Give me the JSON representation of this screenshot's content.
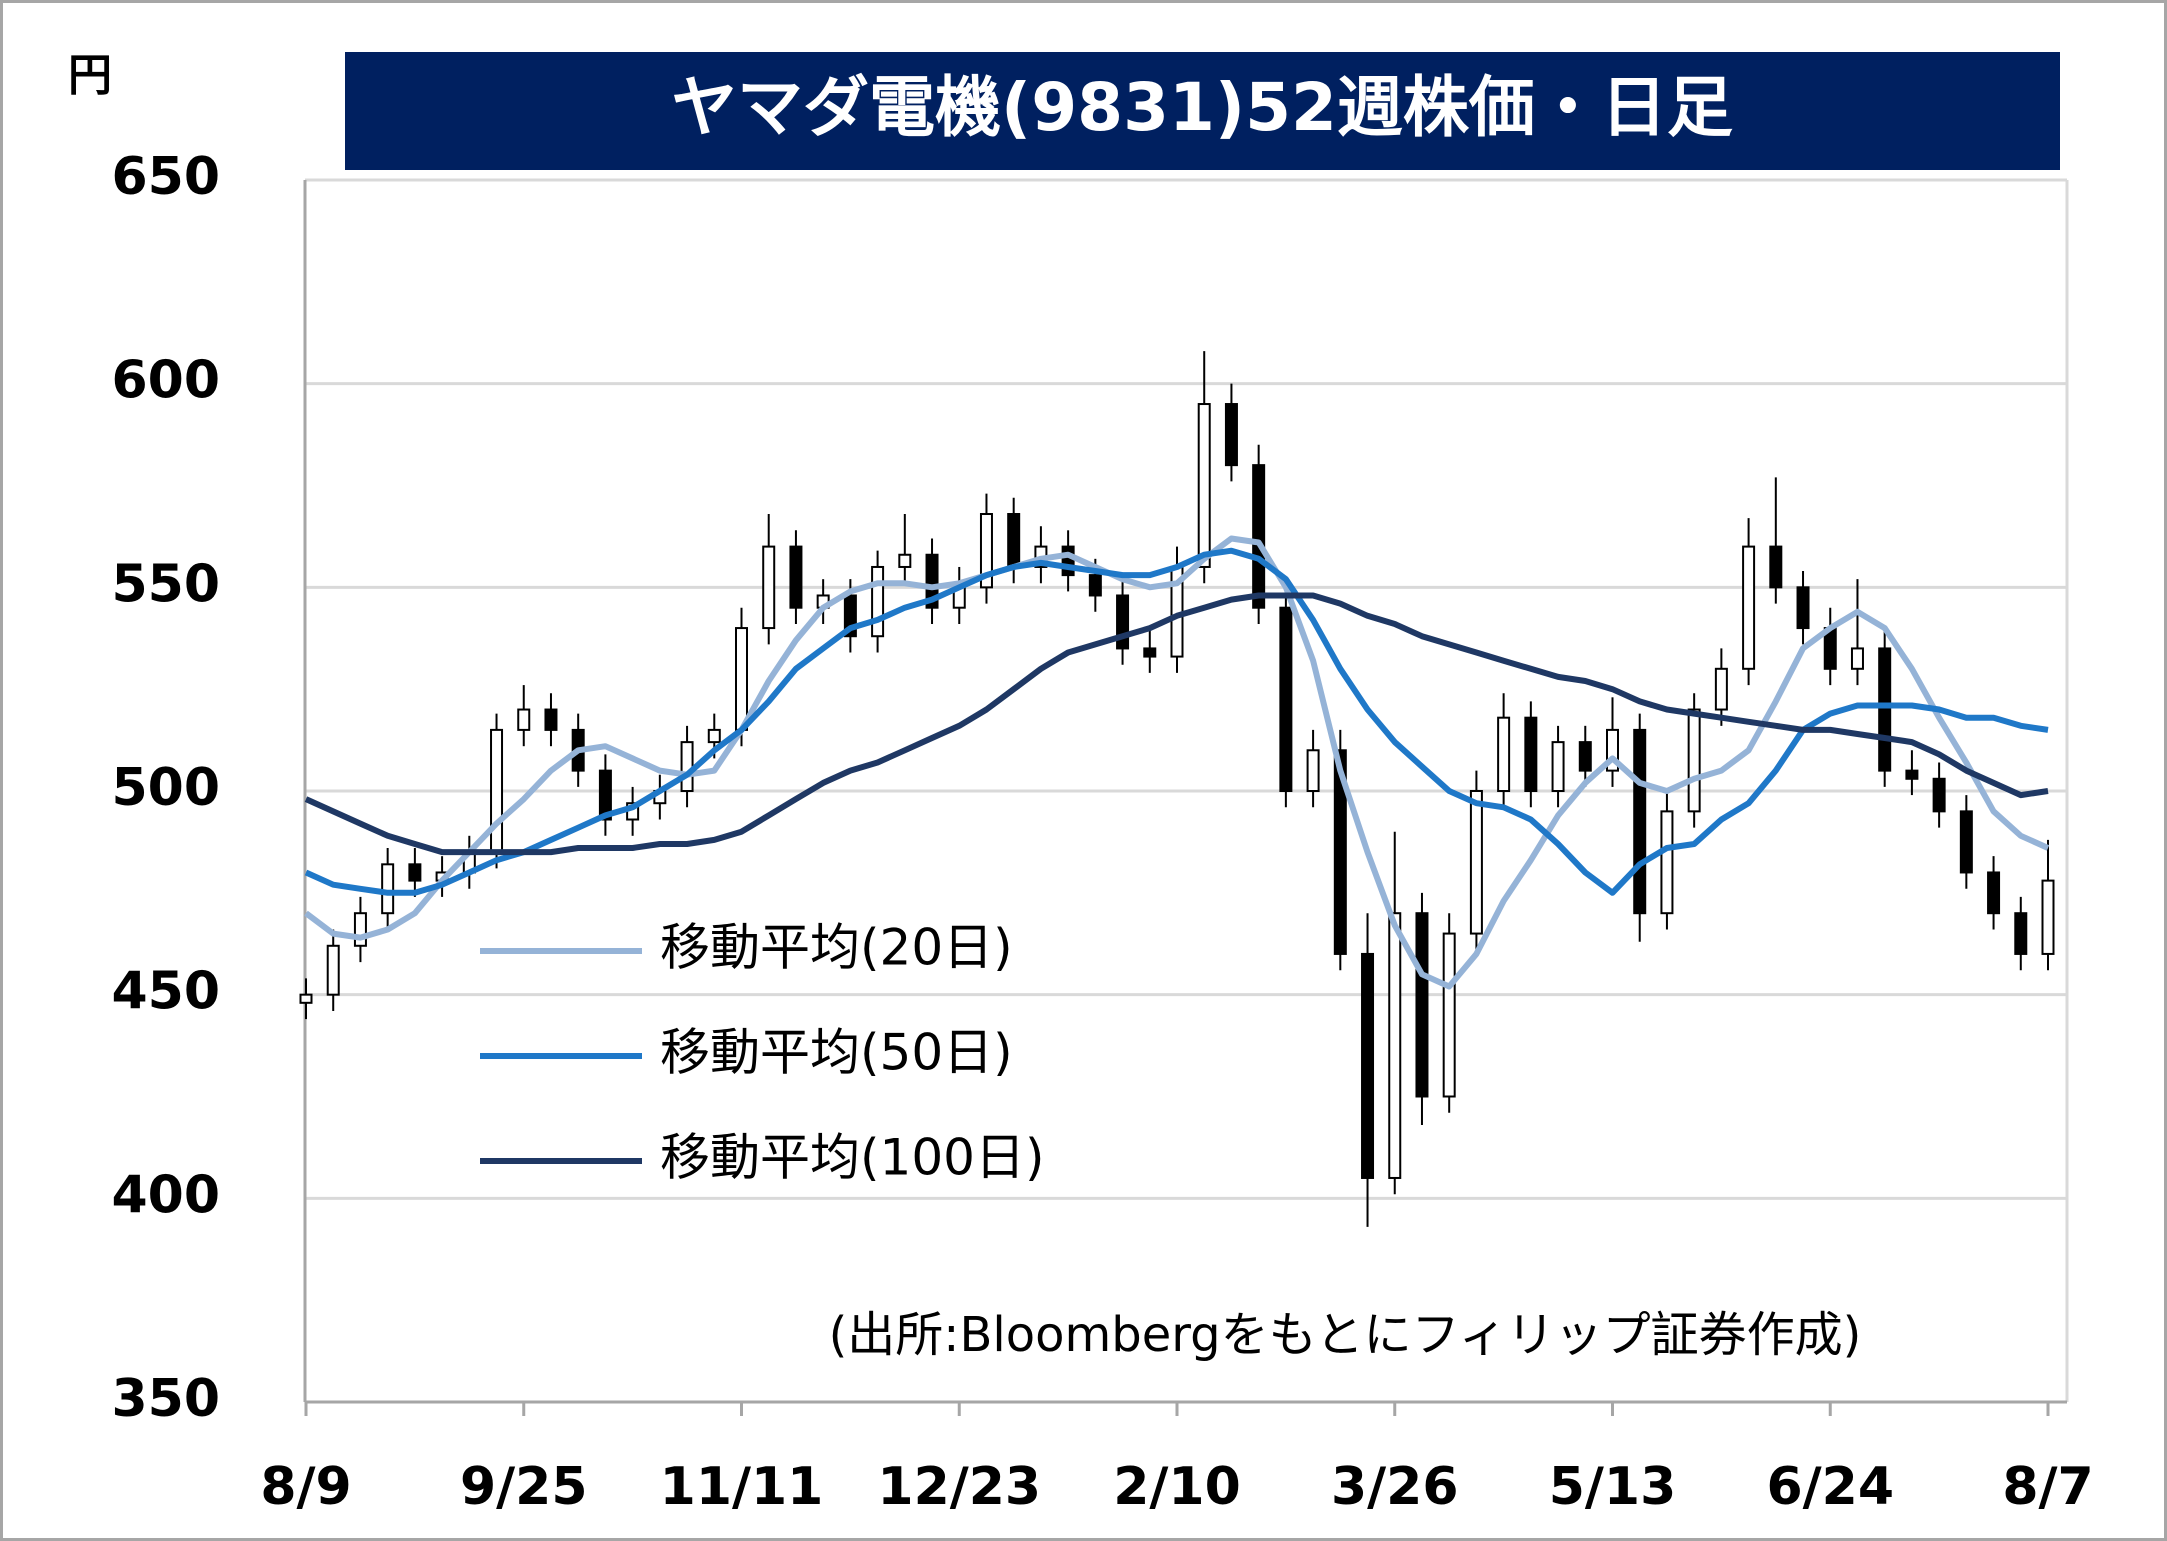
{
  "chart_data": {
    "type": "candlestick",
    "title": "ヤマダ電機(9831)52週株価・日足",
    "y_unit": "円",
    "source": "(出所:Bloombergをもとにフィリップ証券作成)",
    "categories": [
      "8/9",
      null,
      null,
      null,
      null,
      null,
      null,
      null,
      "9/25",
      null,
      null,
      null,
      null,
      null,
      null,
      null,
      "11/11",
      null,
      null,
      null,
      null,
      null,
      null,
      null,
      "12/23",
      null,
      null,
      null,
      null,
      null,
      null,
      null,
      "2/10",
      null,
      null,
      null,
      null,
      null,
      null,
      null,
      "3/26",
      null,
      null,
      null,
      null,
      null,
      null,
      null,
      "5/13",
      null,
      null,
      null,
      null,
      null,
      null,
      null,
      "6/24",
      null,
      null,
      null,
      null,
      null,
      null,
      null,
      "8/7"
    ],
    "open": [
      448,
      450,
      462,
      470,
      482,
      478,
      480,
      485,
      515,
      520,
      515,
      505,
      493,
      497,
      500,
      512,
      515,
      540,
      560,
      545,
      548,
      538,
      555,
      558,
      545,
      550,
      568,
      555,
      560,
      553,
      548,
      535,
      533,
      555,
      595,
      580,
      545,
      500,
      510,
      460,
      405,
      470,
      425,
      465,
      500,
      518,
      500,
      512,
      505,
      515,
      470,
      495,
      520,
      530,
      560,
      550,
      540,
      530,
      535,
      505,
      503,
      495,
      480,
      470,
      460
    ],
    "high": [
      454,
      466,
      474,
      486,
      486,
      484,
      489,
      519,
      526,
      524,
      519,
      509,
      501,
      504,
      516,
      519,
      545,
      568,
      564,
      552,
      552,
      559,
      568,
      562,
      555,
      573,
      572,
      565,
      564,
      557,
      552,
      540,
      560,
      608,
      600,
      585,
      550,
      515,
      515,
      470,
      490,
      475,
      470,
      505,
      524,
      522,
      516,
      516,
      523,
      519,
      500,
      524,
      535,
      567,
      577,
      554,
      545,
      552,
      540,
      510,
      507,
      499,
      484,
      474,
      488
    ],
    "low": [
      444,
      446,
      458,
      466,
      474,
      474,
      476,
      481,
      511,
      511,
      501,
      489,
      489,
      493,
      496,
      508,
      511,
      536,
      541,
      541,
      534,
      534,
      551,
      541,
      541,
      546,
      551,
      551,
      549,
      544,
      531,
      529,
      529,
      551,
      576,
      541,
      496,
      496,
      456,
      393,
      401,
      418,
      421,
      461,
      496,
      496,
      496,
      501,
      501,
      463,
      466,
      491,
      516,
      526,
      546,
      536,
      526,
      526,
      501,
      499,
      491,
      476,
      466,
      456,
      456
    ],
    "close": [
      450,
      462,
      470,
      482,
      478,
      480,
      485,
      515,
      520,
      515,
      505,
      493,
      497,
      500,
      512,
      515,
      540,
      560,
      545,
      548,
      538,
      555,
      558,
      545,
      550,
      568,
      555,
      560,
      553,
      548,
      535,
      533,
      555,
      595,
      580,
      545,
      500,
      510,
      460,
      405,
      470,
      425,
      465,
      500,
      518,
      500,
      512,
      505,
      515,
      470,
      495,
      520,
      530,
      560,
      550,
      540,
      530,
      535,
      505,
      503,
      495,
      480,
      470,
      460,
      478
    ],
    "series": [
      {
        "name": "移動平均(20日)",
        "color": "#95b3d7",
        "values": [
          470,
          465,
          464,
          466,
          470,
          478,
          485,
          492,
          498,
          505,
          510,
          511,
          508,
          505,
          504,
          505,
          515,
          527,
          537,
          545,
          549,
          551,
          551,
          550,
          551,
          553,
          555,
          557,
          558,
          555,
          552,
          550,
          551,
          557,
          562,
          561,
          550,
          532,
          505,
          485,
          467,
          455,
          452,
          460,
          473,
          483,
          494,
          502,
          508,
          502,
          500,
          503,
          505,
          510,
          522,
          535,
          540,
          544,
          540,
          530,
          518,
          507,
          495,
          489,
          486
        ]
      },
      {
        "name": "移動平均(50日)",
        "color": "#1f78c8",
        "values": [
          480,
          477,
          476,
          475,
          475,
          477,
          480,
          483,
          485,
          488,
          491,
          494,
          496,
          500,
          504,
          510,
          515,
          522,
          530,
          535,
          540,
          542,
          545,
          547,
          550,
          553,
          555,
          556,
          555,
          554,
          553,
          553,
          555,
          558,
          559,
          557,
          552,
          542,
          530,
          520,
          512,
          506,
          500,
          497,
          496,
          493,
          487,
          480,
          475,
          482,
          486,
          487,
          493,
          497,
          505,
          515,
          519,
          521,
          521,
          521,
          520,
          518,
          518,
          516,
          515
        ]
      },
      {
        "name": "移動平均(100日)",
        "color": "#1f3864",
        "values": [
          498,
          495,
          492,
          489,
          487,
          485,
          485,
          485,
          485,
          485,
          486,
          486,
          486,
          487,
          487,
          488,
          490,
          494,
          498,
          502,
          505,
          507,
          510,
          513,
          516,
          520,
          525,
          530,
          534,
          536,
          538,
          540,
          543,
          545,
          547,
          548,
          548,
          548,
          546,
          543,
          541,
          538,
          536,
          534,
          532,
          530,
          528,
          527,
          525,
          522,
          520,
          519,
          518,
          517,
          516,
          515,
          515,
          514,
          513,
          512,
          509,
          505,
          502,
          499,
          500
        ]
      }
    ],
    "ylim": [
      350,
      650
    ],
    "yticks": [
      350,
      400,
      450,
      500,
      550,
      600,
      650
    ],
    "grid": true
  }
}
